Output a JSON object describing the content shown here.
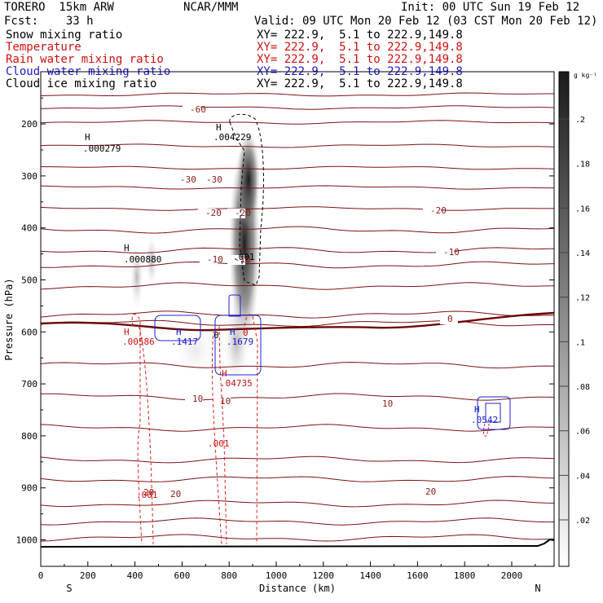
{
  "header": {
    "model": "TORERO  15km ARW",
    "forecast": "Fcst:    33 h",
    "center": "NCAR/MMM",
    "init": "Init: 00 UTC Sun 19 Feb 12",
    "valid": "Valid: 09 UTC Mon 20 Feb 12 (03 CST Mon 20 Feb 12)",
    "fields": [
      {
        "name": "Snow mixing ratio",
        "color": "#000000",
        "xy": ""
      },
      {
        "name": "Temperature",
        "color": "#cc1111",
        "xy": "XY= 222.9,  5.1 to 222.9,149.8"
      },
      {
        "name": "Rain water mixing ratio",
        "color": "#cc1111",
        "xy": "XY= 222.9,  5.1 to 222.9,149.8"
      },
      {
        "name": "Cloud water mixing ratio",
        "color": "#1a1acc",
        "xy": "XY= 222.9,  5.1 to 222.9,149.8"
      },
      {
        "name": "Cloud ice mixing ratio",
        "color": "#000000",
        "xy": "XY= 222.9,  5.1 to 222.9,149.8"
      }
    ],
    "first_xy": "XY= 222.9,  5.1 to 222.9,149.8"
  },
  "chart_data": {
    "type": "cross-section",
    "xlabel": "Distance (km)",
    "ylabel": "Pressure (hPa)",
    "xlim": [
      0,
      2180
    ],
    "ylim": [
      1030,
      100
    ],
    "x_ticks": [
      0,
      200,
      400,
      600,
      800,
      1000,
      1200,
      1400,
      1600,
      1800,
      2000
    ],
    "y_ticks": [
      200,
      300,
      400,
      500,
      600,
      700,
      800,
      900,
      1000
    ],
    "end_labels": {
      "left": "S",
      "right": "N"
    },
    "colorbar": {
      "unit": "g kg⁻¹",
      "ticks": [
        ".02",
        ".04",
        ".06",
        ".08",
        ".1",
        ".12",
        ".14",
        ".16",
        ".18",
        ".2"
      ]
    },
    "temperature_labels": [
      "-60",
      "-30",
      "-30",
      "-20",
      "-20",
      "-20",
      "-10",
      "-10",
      "-10",
      "0",
      "10",
      "10",
      "10",
      "20",
      "20",
      "20"
    ],
    "extrema": [
      {
        "mark": "H",
        "value": ".000279"
      },
      {
        "mark": "H",
        "value": ".004229"
      },
      {
        "mark": "H",
        "value": ".000880"
      },
      {
        "mark": "H",
        "value": ".00586"
      },
      {
        "mark": "H",
        "value": ".1417"
      },
      {
        "mark": "H",
        "value": ".1679"
      },
      {
        "mark": "H",
        "value": ".04735"
      },
      {
        "mark": "H",
        "value": ".0542"
      }
    ],
    "contour_labels": [
      ".001",
      ".001",
      ".001",
      "0",
      "0"
    ]
  }
}
